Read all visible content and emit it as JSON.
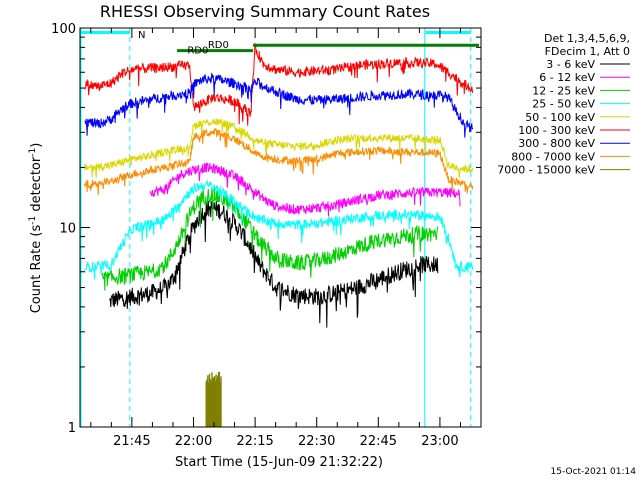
{
  "chart_data": {
    "type": "line",
    "title": "RHESSI Observing Summary Count Rates",
    "xlabel": "Start Time (15-Jun-09 21:32:22)",
    "ylabel": "Count Rate (s⁻¹ detector⁻¹)",
    "ylabel_main": "Count Rate (s",
    "ylabel_sup1": "-1",
    "ylabel_mid": " detector",
    "ylabel_sup2": "-1",
    "ylabel_end": ")",
    "y_scale": "log",
    "ylim": [
      1,
      100
    ],
    "y_ticks": [
      {
        "value": 1,
        "label": "1"
      },
      {
        "value": 10,
        "label": "10"
      },
      {
        "value": 100,
        "label": "100"
      }
    ],
    "x_unit": "minutes of day",
    "xlim": [
      1292.37,
      1390.0
    ],
    "x_ticks": [
      {
        "value": 1305,
        "label": "21:45"
      },
      {
        "value": 1320,
        "label": "22:00"
      },
      {
        "value": 1335,
        "label": "22:15"
      },
      {
        "value": 1350,
        "label": "22:30"
      },
      {
        "value": 1365,
        "label": "22:45"
      },
      {
        "value": 1380,
        "label": "23:00"
      }
    ],
    "legend": {
      "position": "right",
      "header_lines": [
        "Det 1,3,4,5,6,9,",
        "FDecim 1, Att 0"
      ]
    },
    "series": [
      {
        "name": "3 - 6 keV",
        "color": "#000000",
        "noise": 0.045,
        "start": 1299.5,
        "end": 1379.6,
        "x": [
          1299.5,
          1300,
          1305,
          1310,
          1313,
          1315,
          1317,
          1319,
          1321,
          1323,
          1325,
          1327,
          1330,
          1333,
          1336,
          1340,
          1345,
          1350,
          1355,
          1360,
          1365,
          1370,
          1375,
          1379.6
        ],
        "y": [
          4.2,
          4.3,
          4.5,
          4.7,
          5.0,
          5.5,
          7.0,
          9.0,
          11.0,
          12.3,
          12.5,
          12.0,
          10.5,
          8.5,
          6.5,
          5.0,
          4.6,
          4.5,
          4.7,
          5.0,
          5.5,
          6.0,
          6.5,
          6.5
        ]
      },
      {
        "name": "6 - 12 keV",
        "color": "#ff00ff",
        "noise": 0.025,
        "start": 1309.5,
        "end": 1384.9,
        "x": [
          1309.5,
          1313,
          1315,
          1317,
          1320,
          1323,
          1326,
          1329,
          1332,
          1335,
          1338,
          1340,
          1345,
          1350,
          1355,
          1360,
          1365,
          1370,
          1375,
          1380,
          1384.9
        ],
        "y": [
          15.0,
          15.5,
          17.0,
          18.5,
          19.5,
          20.0,
          19.5,
          18.5,
          17.0,
          15.0,
          13.5,
          12.8,
          12.3,
          12.5,
          13.0,
          13.8,
          14.5,
          14.8,
          15.0,
          15.0,
          14.8
        ]
      },
      {
        "name": "12 - 25 keV",
        "color": "#00d000",
        "noise": 0.04,
        "start": 1297.8,
        "end": 1379.6,
        "x": [
          1297.8,
          1300,
          1305,
          1310,
          1313,
          1315,
          1317,
          1319,
          1321,
          1323,
          1325,
          1327,
          1330,
          1333,
          1336,
          1340,
          1345,
          1350,
          1355,
          1360,
          1365,
          1370,
          1375,
          1379.6
        ],
        "y": [
          5.5,
          5.6,
          5.8,
          6.0,
          6.5,
          7.5,
          9.0,
          11.5,
          13.5,
          14.5,
          14.5,
          14.0,
          12.5,
          10.5,
          8.5,
          7.0,
          6.6,
          6.8,
          7.3,
          8.0,
          8.6,
          9.0,
          9.3,
          9.3
        ]
      },
      {
        "name": "25 - 50 keV",
        "color": "#00ffff",
        "noise": 0.025,
        "start": 1293.5,
        "end": 1388.0,
        "x": [
          1293.5,
          1297,
          1300,
          1305,
          1310,
          1313,
          1315,
          1317,
          1319,
          1321,
          1323,
          1325,
          1327,
          1330,
          1333,
          1336,
          1340,
          1345,
          1350,
          1355,
          1360,
          1365,
          1370,
          1375,
          1380,
          1384,
          1388
        ],
        "y": [
          6.3,
          6.4,
          6.5,
          9.8,
          10.5,
          11.0,
          12.0,
          13.5,
          15.0,
          16.0,
          16.3,
          16.0,
          15.0,
          13.5,
          12.0,
          11.0,
          10.5,
          10.3,
          10.5,
          10.8,
          11.2,
          11.5,
          11.6,
          11.5,
          11.3,
          6.4,
          6.3
        ]
      },
      {
        "name": "50 - 100 keV",
        "color": "#d8d800",
        "noise": 0.02,
        "start": 1293.5,
        "end": 1388.0,
        "x": [
          1293.5,
          1300,
          1305,
          1310,
          1313,
          1315,
          1317,
          1319,
          1320,
          1321,
          1322,
          1325,
          1328,
          1331,
          1334,
          1335,
          1336,
          1340,
          1345,
          1350,
          1355,
          1360,
          1365,
          1370,
          1375,
          1380,
          1382,
          1384,
          1388
        ],
        "y": [
          20.0,
          20.5,
          22.0,
          23.0,
          24.0,
          24.5,
          25.0,
          25.0,
          32.0,
          33.0,
          33.5,
          34.0,
          33.0,
          31.0,
          28.5,
          27.5,
          27.0,
          26.0,
          25.5,
          26.0,
          27.5,
          28.0,
          28.3,
          28.0,
          27.8,
          27.5,
          20.5,
          20.0,
          19.5
        ]
      },
      {
        "name": "100 - 300 keV",
        "color": "#ff0000",
        "noise": 0.025,
        "start": 1293.5,
        "end": 1388.0,
        "x": [
          1293.5,
          1297,
          1300,
          1303,
          1305,
          1310,
          1315,
          1318,
          1319,
          1320,
          1325,
          1330,
          1334,
          1335,
          1337,
          1340,
          1345,
          1350,
          1355,
          1360,
          1365,
          1370,
          1375,
          1379,
          1380,
          1384,
          1386,
          1388
        ],
        "y": [
          52.0,
          51.0,
          53.0,
          60.0,
          62.0,
          63.0,
          64.0,
          65.0,
          65.0,
          40.0,
          45.0,
          43.0,
          37.0,
          79.0,
          66.0,
          62.0,
          60.0,
          61.0,
          62.0,
          65.0,
          66.0,
          67.0,
          67.0,
          66.0,
          64.0,
          56.0,
          52.0,
          50.0
        ]
      },
      {
        "name": "300 - 800 keV",
        "color": "#0000ff",
        "noise": 0.025,
        "start": 1293.5,
        "end": 1388.0,
        "x": [
          1293.5,
          1297,
          1300,
          1303,
          1305,
          1310,
          1315,
          1318,
          1319,
          1320,
          1322,
          1325,
          1328,
          1331,
          1334,
          1335,
          1337,
          1340,
          1345,
          1350,
          1355,
          1360,
          1365,
          1370,
          1375,
          1380,
          1382,
          1384,
          1386,
          1388
        ],
        "y": [
          34.0,
          33.0,
          35.0,
          40.0,
          42.0,
          44.0,
          46.0,
          47.0,
          47.0,
          52.0,
          55.0,
          56.0,
          54.0,
          52.0,
          49.0,
          54.0,
          51.0,
          48.0,
          44.0,
          43.5,
          44.0,
          45.0,
          46.0,
          46.5,
          46.5,
          46.0,
          45.0,
          38.0,
          33.0,
          31.0
        ]
      },
      {
        "name": "800 - 7000 keV",
        "color": "#ff8c00",
        "noise": 0.02,
        "start": 1293.5,
        "end": 1388.0,
        "x": [
          1293.5,
          1300,
          1305,
          1310,
          1313,
          1315,
          1317,
          1319,
          1320,
          1321,
          1322,
          1325,
          1328,
          1331,
          1334,
          1335,
          1336,
          1340,
          1345,
          1350,
          1355,
          1360,
          1365,
          1370,
          1375,
          1380,
          1382,
          1384,
          1388
        ],
        "y": [
          16.5,
          17.0,
          18.5,
          19.5,
          20.0,
          20.5,
          21.0,
          21.0,
          28.0,
          29.0,
          29.5,
          30.0,
          29.0,
          27.0,
          24.5,
          23.5,
          23.0,
          22.0,
          21.5,
          22.0,
          23.5,
          24.0,
          24.3,
          24.0,
          23.8,
          23.5,
          17.5,
          17.0,
          16.0
        ]
      },
      {
        "name": "7000 - 15000 keV",
        "color": "#808000",
        "noise": 0.0,
        "start": 1292.4,
        "end": 1389.5,
        "x": [
          1292.4,
          1389.5
        ],
        "y": [
          1.0,
          1.0
        ]
      }
    ],
    "spikes": [
      {
        "series": "7000 - 15000 keV",
        "x": [
          1323.1,
          1323.3,
          1323.5,
          1323.7,
          1323.9,
          1324.1,
          1324.3,
          1324.5,
          1324.7,
          1324.9,
          1325.1,
          1325.3,
          1325.5,
          1325.7,
          1325.9,
          1326.1,
          1326.3,
          1326.5,
          1326.7
        ],
        "height": 1.9
      }
    ],
    "annotations": [
      {
        "text": "N",
        "x": 1306.5,
        "y": 92
      },
      {
        "text": "RD0",
        "x": 1318.5,
        "y": 77
      },
      {
        "text": "RD0",
        "x": 1323.5,
        "y": 82
      }
    ],
    "flag_bars": [
      {
        "color": "#00ffff",
        "y": 95,
        "x": [
          1292.4,
          1304.5
        ]
      },
      {
        "color": "#00ffff",
        "y": 95,
        "x": [
          1376.5,
          1387.5
        ]
      },
      {
        "color": "#008000",
        "y": 77,
        "x": [
          1316.0,
          1334.5
        ]
      },
      {
        "color": "#008000",
        "y": 82,
        "x": [
          1334.5,
          1389.5
        ]
      }
    ],
    "event_lines": [
      {
        "color": "#00ffff",
        "style": "solid",
        "x": 1292.6
      },
      {
        "color": "#00ffff",
        "style": "dashed",
        "x": 1304.5
      },
      {
        "color": "#00ffff",
        "style": "solid",
        "x": 1376.3
      },
      {
        "color": "#00ffff",
        "style": "dashed",
        "x": 1387.5
      }
    ],
    "timestamp": "15-Oct-2021 01:14"
  }
}
